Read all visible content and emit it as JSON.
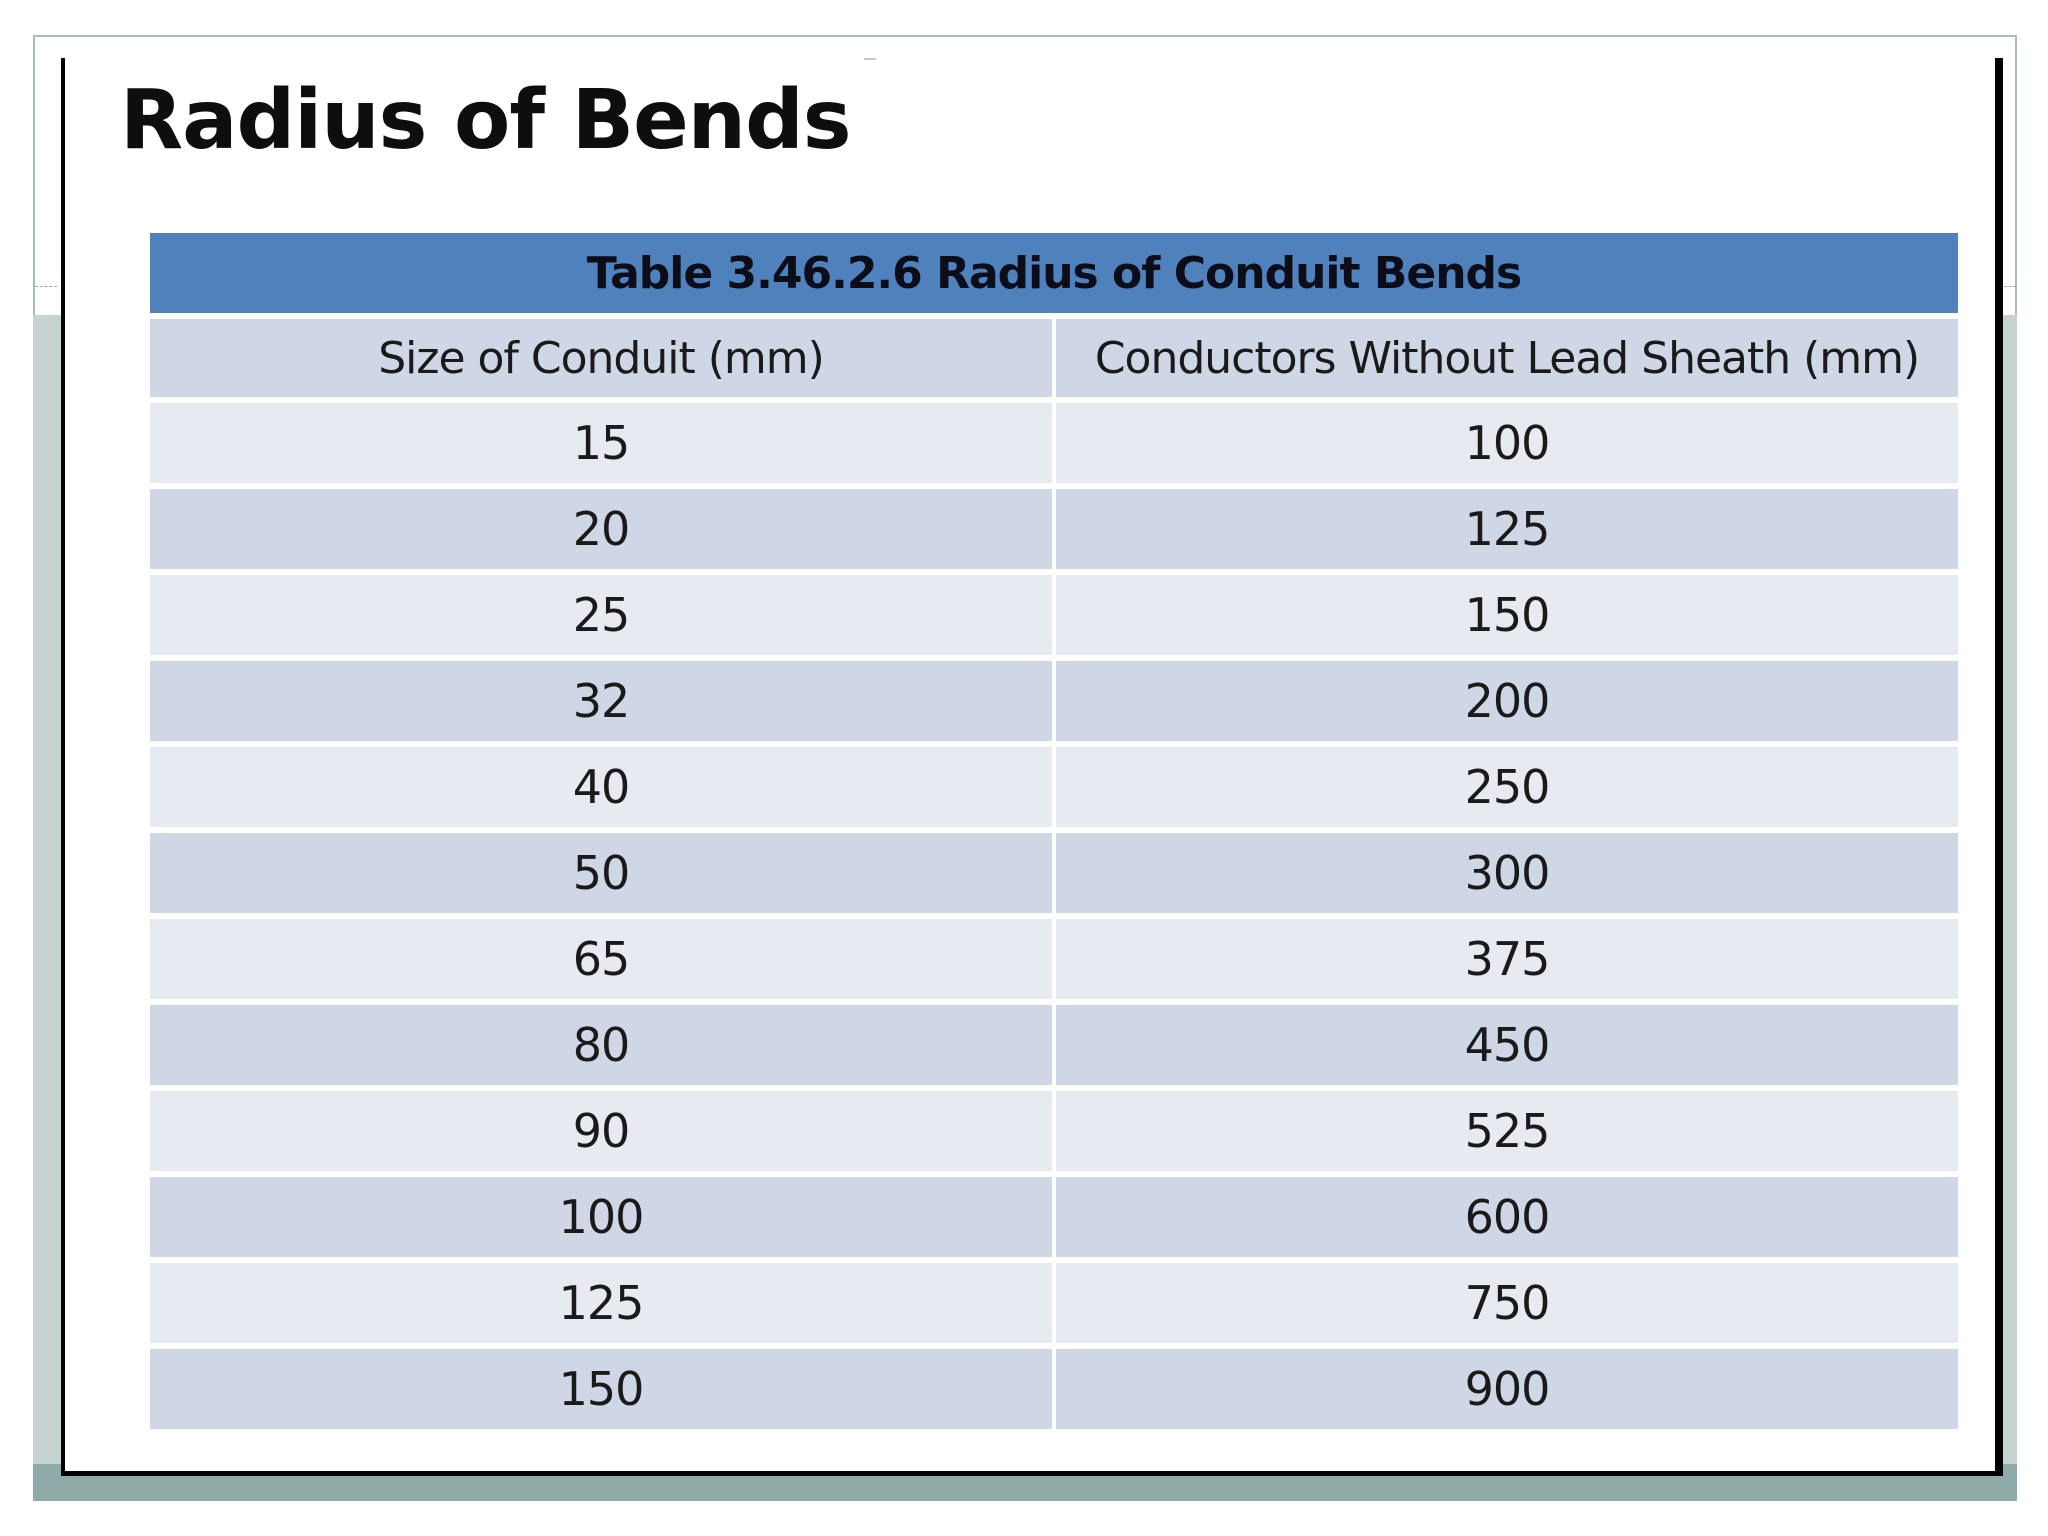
{
  "slide": {
    "title": "Radius of Bends"
  },
  "table": {
    "caption": "Table 3.46.2.6 Radius of Conduit Bends",
    "headers": [
      "Size of Conduit (mm)",
      "Conductors Without Lead Sheath (mm)"
    ],
    "rows": [
      [
        "15",
        "100"
      ],
      [
        "20",
        "125"
      ],
      [
        "25",
        "150"
      ],
      [
        "32",
        "200"
      ],
      [
        "40",
        "250"
      ],
      [
        "50",
        "300"
      ],
      [
        "65",
        "375"
      ],
      [
        "80",
        "450"
      ],
      [
        "90",
        "525"
      ],
      [
        "100",
        "600"
      ],
      [
        "125",
        "750"
      ],
      [
        "150",
        "900"
      ]
    ]
  },
  "colors": {
    "caption_bg": "#4f81bd",
    "row_light": "#e8eaf1",
    "row_dark": "#cfd6e6",
    "frame_band": "#8eaaa9"
  }
}
